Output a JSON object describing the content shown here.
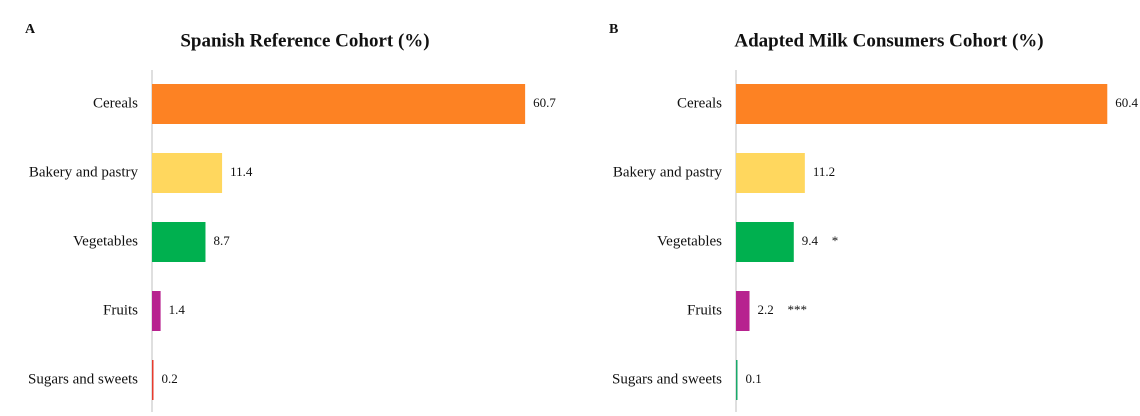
{
  "chart_data": [
    {
      "type": "barh",
      "panel": "A",
      "title": "Spanish Reference Cohort (%)",
      "categories": [
        "Cereals",
        "Bakery and pastry",
        "Vegetables",
        "Fruits",
        "Sugars and sweets"
      ],
      "values": [
        60.7,
        11.4,
        8.7,
        1.4,
        0.2
      ],
      "colors": [
        "#fd8223",
        "#ffd75e",
        "#00b04f",
        "#b7228f",
        "#e63b2e"
      ],
      "xlim": [
        0,
        68
      ]
    },
    {
      "type": "barh",
      "panel": "B",
      "title": "Adapted Milk Consumers Cohort (%)",
      "categories": [
        "Cereals",
        "Bakery and pastry",
        "Vegetables",
        "Fruits",
        "Sugars and sweets"
      ],
      "values": [
        60.4,
        11.2,
        9.4,
        2.2,
        0.1
      ],
      "colors": [
        "#fd8223",
        "#ffd75e",
        "#00b04f",
        "#b7228f",
        "#1aa86a"
      ],
      "xlim": [
        0,
        68
      ],
      "annotations": [
        {
          "category": "Vegetables",
          "text": "*"
        },
        {
          "category": "Fruits",
          "text": "***"
        }
      ]
    }
  ]
}
